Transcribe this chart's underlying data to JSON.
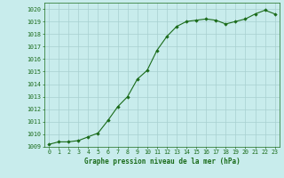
{
  "x": [
    0,
    1,
    2,
    3,
    4,
    5,
    6,
    7,
    8,
    9,
    10,
    11,
    12,
    13,
    14,
    15,
    16,
    17,
    18,
    19,
    20,
    21,
    22,
    23
  ],
  "y": [
    1009.2,
    1009.4,
    1009.4,
    1009.5,
    1009.8,
    1010.1,
    1011.1,
    1012.2,
    1013.0,
    1014.4,
    1015.1,
    1016.7,
    1017.8,
    1018.6,
    1019.0,
    1019.1,
    1019.2,
    1019.1,
    1018.8,
    1019.0,
    1019.2,
    1019.6,
    1019.9,
    1019.6
  ],
  "line_color": "#1a6b1a",
  "marker": "D",
  "markersize": 1.8,
  "linewidth": 0.8,
  "bg_color": "#c8ecec",
  "grid_color": "#a8d0d0",
  "ylim": [
    1009,
    1020.5
  ],
  "yticks": [
    1009,
    1010,
    1011,
    1012,
    1013,
    1014,
    1015,
    1016,
    1017,
    1018,
    1019,
    1020
  ],
  "xlim": [
    -0.5,
    23.5
  ],
  "xtick_labels": [
    "0",
    "1",
    "2",
    "3",
    "4",
    "5",
    "6",
    "7",
    "8",
    "9",
    "10",
    "11",
    "12",
    "13",
    "14",
    "15",
    "16",
    "17",
    "18",
    "19",
    "20",
    "21",
    "22",
    "23"
  ],
  "xlabel": "Graphe pression niveau de la mer (hPa)",
  "tick_color": "#1a6b1a",
  "label_fontsize": 5.5,
  "tick_fontsize": 4.8,
  "axis_color": "#1a6b1a"
}
